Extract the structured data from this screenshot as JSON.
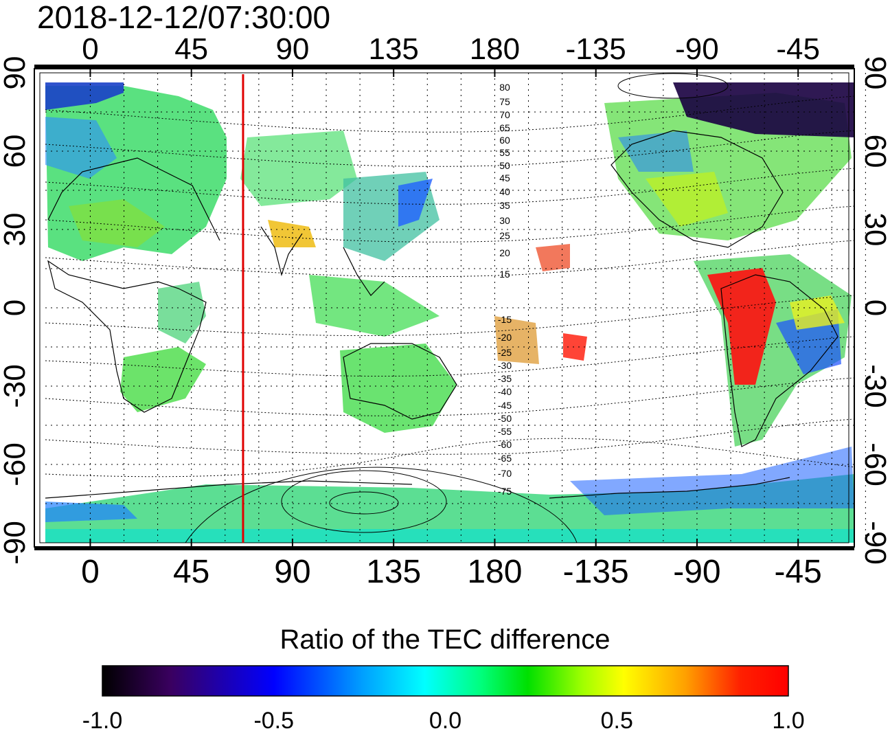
{
  "title": "2018-12-12/07:30:00",
  "map": {
    "lon_ticks_top": [
      "0",
      "45",
      "90",
      "135",
      "180",
      "-135",
      "-90",
      "-45"
    ],
    "lon_ticks_bottom": [
      "0",
      "45",
      "90",
      "135",
      "180",
      "-135",
      "-90",
      "-45"
    ],
    "lat_ticks_left": [
      "90",
      "60",
      "30",
      "0",
      "-30",
      "-60",
      "-90"
    ],
    "lat_ticks_right": [
      "90",
      "60",
      "30",
      "0",
      "-30",
      "-60",
      "-90"
    ],
    "contour_labels_north": [
      "80",
      "75",
      "70",
      "65",
      "60",
      "55",
      "50",
      "45",
      "40",
      "35",
      "30",
      "25",
      "20",
      "15"
    ],
    "contour_labels_south": [
      "-15",
      "-20",
      "-25",
      "-30",
      "-35",
      "-40",
      "-45",
      "-50",
      "-55",
      "-60",
      "-65",
      "-70",
      "-75"
    ],
    "marker_longitude_deg": 68,
    "marker_color": "#e00000",
    "grid": true
  },
  "colorbar": {
    "title": "Ratio of the TEC difference",
    "tick_labels": [
      "-1.0",
      "-0.5",
      "0.0",
      "0.5",
      "1.0"
    ],
    "range": [
      -1.0,
      1.0
    ],
    "colors": [
      "#000000",
      "#3a0060",
      "#0000ff",
      "#00a0ff",
      "#00ffff",
      "#00ff80",
      "#00e000",
      "#a0ff00",
      "#ffff00",
      "#ffa000",
      "#ff2000",
      "#ff0000"
    ]
  }
}
